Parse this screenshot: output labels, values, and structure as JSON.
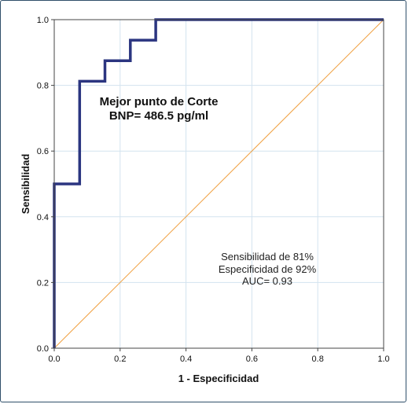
{
  "chart_data": {
    "type": "line",
    "title": "",
    "xlabel": "1 - Especificidad",
    "ylabel": "Sensibilidad",
    "xlim": [
      0,
      1
    ],
    "ylim": [
      0,
      1
    ],
    "grid": true,
    "x_ticks": [
      "0.0",
      "0.2",
      "0.4",
      "0.6",
      "0.8",
      "1.0"
    ],
    "y_ticks": [
      "0.0",
      "0.2",
      "0.4",
      "0.6",
      "0.8",
      "1.0"
    ],
    "series": [
      {
        "style": "step",
        "color": "#2b3580",
        "x": [
          0,
          0,
          0.077,
          0.077,
          0.154,
          0.154,
          0.231,
          0.231,
          0.308,
          0.308,
          1.0
        ],
        "y": [
          0,
          0.5,
          0.5,
          0.8125,
          0.8125,
          0.875,
          0.875,
          0.9375,
          0.9375,
          1.0,
          1.0
        ]
      },
      {
        "style": "reference",
        "color": "#f0a040",
        "x": [
          0,
          1
        ],
        "y": [
          0,
          1
        ]
      }
    ],
    "annotations": {
      "cutoff_line1": "Mejor punto de Corte",
      "cutoff_line2": "BNP= 486.5 pg/ml",
      "stats_line1": "Sensibilidad de 81%",
      "stats_line2": "Especificidad de 92%",
      "stats_line3": "AUC= 0.93"
    },
    "colors": {
      "grid": "#d3e3ef",
      "axes": "#444444",
      "frame": "#2f4f6a"
    }
  }
}
